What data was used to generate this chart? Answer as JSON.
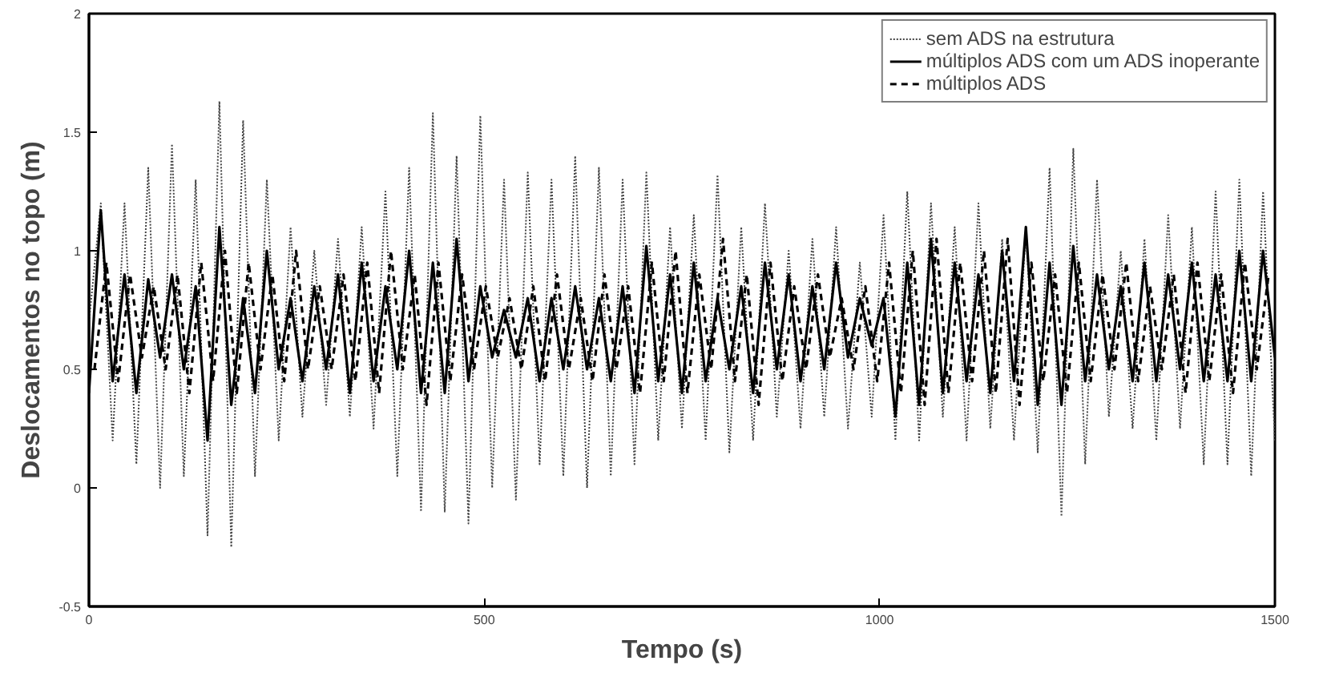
{
  "chart_data": {
    "type": "line",
    "xlabel": "Tempo (s)",
    "ylabel": "Deslocamentos no topo (m)",
    "xlim": [
      0,
      1500
    ],
    "xticks": [
      0,
      500,
      1000,
      1500
    ],
    "ylim": [
      -0.5,
      2
    ],
    "yticks": [
      -0.5,
      0,
      0.5,
      1,
      1.5,
      2
    ],
    "grid": false,
    "legend": "top right",
    "series": [
      {
        "name": "sem ADS na estrutura",
        "color": "#444444",
        "line_style": "dotted",
        "x": [
          0,
          15,
          30,
          45,
          60,
          75,
          90,
          105,
          120,
          135,
          150,
          165,
          180,
          195,
          210,
          225,
          240,
          255,
          270,
          285,
          300,
          315,
          330,
          345,
          360,
          375,
          390,
          405,
          420,
          435,
          450,
          465,
          480,
          495,
          510,
          525,
          540,
          555,
          570,
          585,
          600,
          615,
          630,
          645,
          660,
          675,
          690,
          705,
          720,
          735,
          750,
          765,
          780,
          795,
          810,
          825,
          840,
          855,
          870,
          885,
          900,
          915,
          930,
          945,
          960,
          975,
          990,
          1005,
          1020,
          1035,
          1050,
          1065,
          1080,
          1095,
          1110,
          1125,
          1140,
          1155,
          1170,
          1185,
          1200,
          1215,
          1230,
          1245,
          1260,
          1275,
          1290,
          1305,
          1320,
          1335,
          1350,
          1365,
          1380,
          1395,
          1410,
          1425,
          1440,
          1455,
          1470,
          1485,
          1500
        ],
        "values": [
          0.7,
          1.2,
          0.2,
          1.2,
          0.1,
          1.35,
          0.0,
          1.45,
          0.05,
          1.3,
          -0.2,
          1.63,
          -0.25,
          1.55,
          0.05,
          1.3,
          0.2,
          1.1,
          0.3,
          1.0,
          0.35,
          1.05,
          0.3,
          1.1,
          0.25,
          1.25,
          0.05,
          1.35,
          -0.1,
          1.58,
          -0.1,
          1.4,
          -0.15,
          1.57,
          0.0,
          1.3,
          -0.05,
          1.33,
          0.1,
          1.3,
          0.05,
          1.4,
          0.0,
          1.35,
          0.05,
          1.3,
          0.1,
          1.33,
          0.2,
          1.1,
          0.25,
          1.15,
          0.2,
          1.32,
          0.15,
          1.1,
          0.2,
          1.2,
          0.3,
          1.0,
          0.25,
          1.05,
          0.3,
          1.1,
          0.25,
          0.95,
          0.3,
          1.15,
          0.2,
          1.25,
          0.2,
          1.2,
          0.3,
          1.1,
          0.2,
          1.2,
          0.25,
          1.05,
          0.2,
          1.1,
          0.15,
          1.35,
          -0.12,
          1.43,
          0.1,
          1.3,
          0.3,
          1.0,
          0.25,
          1.05,
          0.2,
          1.15,
          0.25,
          1.1,
          0.1,
          1.25,
          0.1,
          1.3,
          0.05,
          1.25,
          0.2
        ]
      },
      {
        "name": "múltiplos ADS com um ADS inoperante",
        "color": "#000000",
        "line_style": "solid",
        "x": [
          0,
          15,
          30,
          45,
          60,
          75,
          90,
          105,
          120,
          135,
          150,
          165,
          180,
          195,
          210,
          225,
          240,
          255,
          270,
          285,
          300,
          315,
          330,
          345,
          360,
          375,
          390,
          405,
          420,
          435,
          450,
          465,
          480,
          495,
          510,
          525,
          540,
          555,
          570,
          585,
          600,
          615,
          630,
          645,
          660,
          675,
          690,
          705,
          720,
          735,
          750,
          765,
          780,
          795,
          810,
          825,
          840,
          855,
          870,
          885,
          900,
          915,
          930,
          945,
          960,
          975,
          990,
          1005,
          1020,
          1035,
          1050,
          1065,
          1080,
          1095,
          1110,
          1125,
          1140,
          1155,
          1170,
          1185,
          1200,
          1215,
          1230,
          1245,
          1260,
          1275,
          1290,
          1305,
          1320,
          1335,
          1350,
          1365,
          1380,
          1395,
          1410,
          1425,
          1440,
          1455,
          1470,
          1485,
          1500
        ],
        "values": [
          0.4,
          1.17,
          0.45,
          0.9,
          0.4,
          0.88,
          0.55,
          0.9,
          0.5,
          0.85,
          0.2,
          1.1,
          0.35,
          0.8,
          0.4,
          1.0,
          0.5,
          0.8,
          0.45,
          0.85,
          0.5,
          0.9,
          0.4,
          0.95,
          0.45,
          0.85,
          0.5,
          1.0,
          0.4,
          0.95,
          0.4,
          1.05,
          0.45,
          0.85,
          0.55,
          0.75,
          0.55,
          0.8,
          0.45,
          0.8,
          0.5,
          0.85,
          0.5,
          0.8,
          0.45,
          0.85,
          0.4,
          1.02,
          0.45,
          0.9,
          0.4,
          0.95,
          0.45,
          0.8,
          0.5,
          0.85,
          0.4,
          0.95,
          0.5,
          0.9,
          0.45,
          0.85,
          0.5,
          0.95,
          0.55,
          0.8,
          0.6,
          0.8,
          0.3,
          0.95,
          0.35,
          1.05,
          0.4,
          0.95,
          0.45,
          0.9,
          0.4,
          1.0,
          0.45,
          1.1,
          0.35,
          0.95,
          0.35,
          1.02,
          0.45,
          0.9,
          0.5,
          0.85,
          0.45,
          0.95,
          0.45,
          0.9,
          0.5,
          0.95,
          0.45,
          0.9,
          0.45,
          1.0,
          0.45,
          1.0,
          0.55
        ]
      },
      {
        "name": "múltiplos ADS",
        "color": "#000000",
        "line_style": "dashed",
        "x": [
          7,
          22,
          37,
          52,
          67,
          82,
          97,
          112,
          127,
          142,
          157,
          172,
          187,
          202,
          217,
          232,
          247,
          262,
          277,
          292,
          307,
          322,
          337,
          352,
          367,
          382,
          397,
          412,
          427,
          442,
          457,
          472,
          487,
          502,
          517,
          532,
          547,
          562,
          577,
          592,
          607,
          622,
          637,
          652,
          667,
          682,
          697,
          712,
          727,
          742,
          757,
          772,
          787,
          802,
          817,
          832,
          847,
          862,
          877,
          892,
          907,
          922,
          937,
          952,
          967,
          982,
          997,
          1012,
          1027,
          1042,
          1057,
          1072,
          1087,
          1102,
          1117,
          1132,
          1147,
          1162,
          1177,
          1192,
          1207,
          1222,
          1237,
          1252,
          1267,
          1282,
          1297,
          1312,
          1327,
          1342,
          1357,
          1372,
          1387,
          1402,
          1417,
          1432,
          1447,
          1462,
          1477,
          1492
        ],
        "values": [
          0.5,
          0.95,
          0.45,
          0.9,
          0.55,
          0.85,
          0.5,
          0.9,
          0.4,
          0.95,
          0.45,
          1.0,
          0.4,
          0.95,
          0.5,
          0.9,
          0.45,
          1.0,
          0.5,
          0.85,
          0.5,
          0.9,
          0.45,
          0.95,
          0.4,
          1.0,
          0.5,
          0.9,
          0.35,
          0.95,
          0.45,
          0.9,
          0.5,
          0.85,
          0.55,
          0.8,
          0.5,
          0.85,
          0.45,
          0.9,
          0.5,
          0.8,
          0.45,
          0.9,
          0.5,
          0.85,
          0.4,
          0.95,
          0.45,
          1.0,
          0.4,
          0.9,
          0.5,
          1.05,
          0.45,
          0.9,
          0.35,
          0.95,
          0.45,
          0.85,
          0.5,
          0.9,
          0.55,
          0.8,
          0.5,
          0.85,
          0.45,
          0.95,
          0.4,
          1.0,
          0.35,
          1.05,
          0.4,
          0.95,
          0.45,
          1.0,
          0.4,
          1.05,
          0.35,
          0.95,
          0.45,
          0.9,
          0.4,
          0.95,
          0.45,
          0.9,
          0.5,
          0.95,
          0.45,
          0.85,
          0.5,
          0.9,
          0.4,
          0.95,
          0.45,
          0.9,
          0.4,
          0.95,
          0.5,
          0.9
        ]
      }
    ]
  }
}
